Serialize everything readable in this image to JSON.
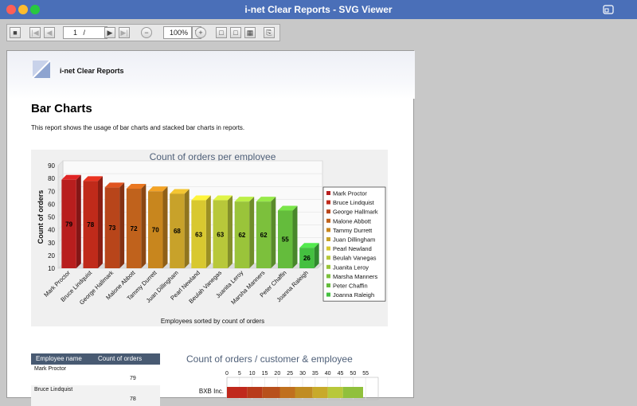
{
  "window": {
    "title": "i-net Clear Reports - SVG Viewer"
  },
  "toolbar": {
    "page_value": "1",
    "page_sep": "/",
    "zoom_value": "100%"
  },
  "report": {
    "brand": "i-net Clear Reports",
    "title": "Bar Charts",
    "description": "This report shows the usage of bar charts and stacked bar charts in reports."
  },
  "chart_data": [
    {
      "type": "bar",
      "title": "Count of orders per employee",
      "xlabel": "Employees sorted by count of orders",
      "ylabel": "Count of orders",
      "ylim": [
        10,
        90
      ],
      "yticks": [
        10,
        20,
        30,
        40,
        50,
        60,
        70,
        80,
        90
      ],
      "categories": [
        "Mark Proctor",
        "Bruce Lindquist",
        "George Hallmark",
        "Malone Abbott",
        "Tammy Durrett",
        "Juan Dillingham",
        "Pearl Newland",
        "Beulah Vanegas",
        "Juanita Leroy",
        "Marsha Manners",
        "Peter Chaffin",
        "Joanna Raleigh"
      ],
      "values": [
        79,
        78,
        73,
        72,
        70,
        68,
        63,
        63,
        62,
        62,
        55,
        26
      ],
      "colors": [
        "#b81e1e",
        "#c02a1a",
        "#b8451a",
        "#c0621c",
        "#c8861e",
        "#c8a22a",
        "#d8c830",
        "#b8c83a",
        "#9ac43a",
        "#7cc03c",
        "#64bc3c",
        "#44c040"
      ],
      "legend": "right",
      "grid": true
    },
    {
      "type": "bar",
      "title": "Count of orders / customer & employee",
      "xticks": [
        0,
        5,
        10,
        15,
        20,
        25,
        30,
        35,
        40,
        45,
        50,
        55
      ],
      "categories": [
        "BXB Inc."
      ],
      "stacked": true,
      "segments": [
        {
          "value": 8,
          "color": "#c0281c"
        },
        {
          "value": 6,
          "color": "#b83a1a"
        },
        {
          "value": 7,
          "color": "#b8501c"
        },
        {
          "value": 6,
          "color": "#c0701e"
        },
        {
          "value": 7,
          "color": "#c08c22"
        },
        {
          "value": 6,
          "color": "#c8aa2a"
        },
        {
          "value": 6,
          "color": "#b8c83a"
        },
        {
          "value": 8,
          "color": "#90c03c"
        }
      ]
    }
  ],
  "table": {
    "headers": [
      "Employee name",
      "Count of orders"
    ],
    "rows": [
      {
        "name": "Mark Proctor",
        "count": "79"
      },
      {
        "name": "Bruce Lindquist",
        "count": "78"
      }
    ]
  }
}
